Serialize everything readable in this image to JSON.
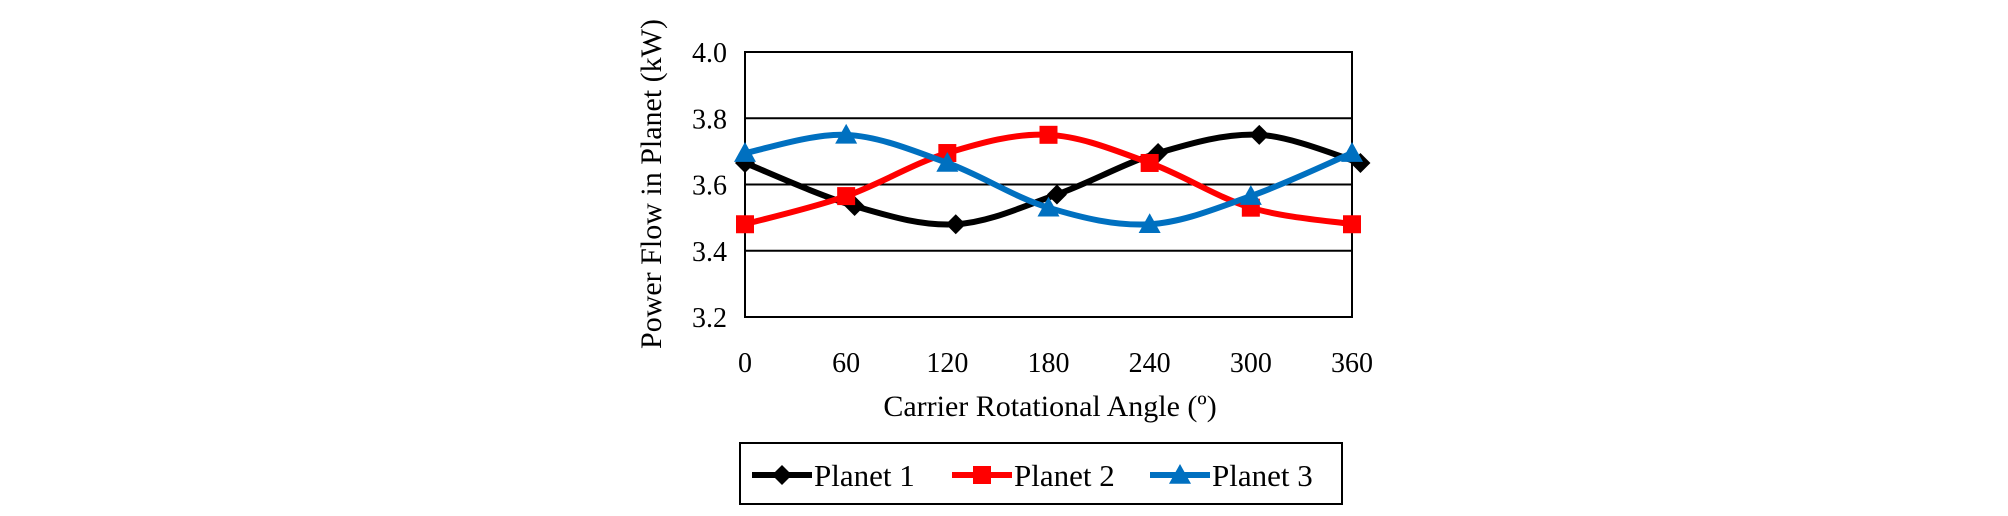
{
  "chart_data": {
    "type": "line",
    "title": "",
    "xlabel": "Carrier Rotational Angle (º)",
    "ylabel": "Power Flow in Planet (kW)",
    "x": [
      0,
      60,
      120,
      180,
      240,
      300,
      360
    ],
    "x_ticks": [
      "0",
      "60",
      "120",
      "180",
      "240",
      "300",
      "360"
    ],
    "y_ticks": [
      "3.2",
      "3.4",
      "3.6",
      "3.8",
      "4.0"
    ],
    "xlim": [
      0,
      360
    ],
    "ylim": [
      3.2,
      4.0
    ],
    "grid": "horizontal",
    "legend_position": "bottom",
    "series": [
      {
        "name": "Planet 1",
        "color": "#000000",
        "marker": "diamond",
        "points": [
          [
            0,
            3.665
          ],
          [
            65,
            3.535
          ],
          [
            125,
            3.48
          ],
          [
            185,
            3.57
          ],
          [
            245,
            3.695
          ],
          [
            305,
            3.75
          ],
          [
            365,
            3.665
          ]
        ]
      },
      {
        "name": "Planet 2",
        "color": "#ff0000",
        "marker": "square",
        "points": [
          [
            0,
            3.48
          ],
          [
            60,
            3.565
          ],
          [
            120,
            3.695
          ],
          [
            180,
            3.75
          ],
          [
            240,
            3.665
          ],
          [
            300,
            3.53
          ],
          [
            360,
            3.48
          ]
        ]
      },
      {
        "name": "Planet 3",
        "color": "#0070c0",
        "marker": "triangle",
        "points": [
          [
            0,
            3.695
          ],
          [
            60,
            3.75
          ],
          [
            120,
            3.665
          ],
          [
            180,
            3.53
          ],
          [
            240,
            3.48
          ],
          [
            300,
            3.565
          ],
          [
            360,
            3.695
          ]
        ]
      }
    ]
  }
}
